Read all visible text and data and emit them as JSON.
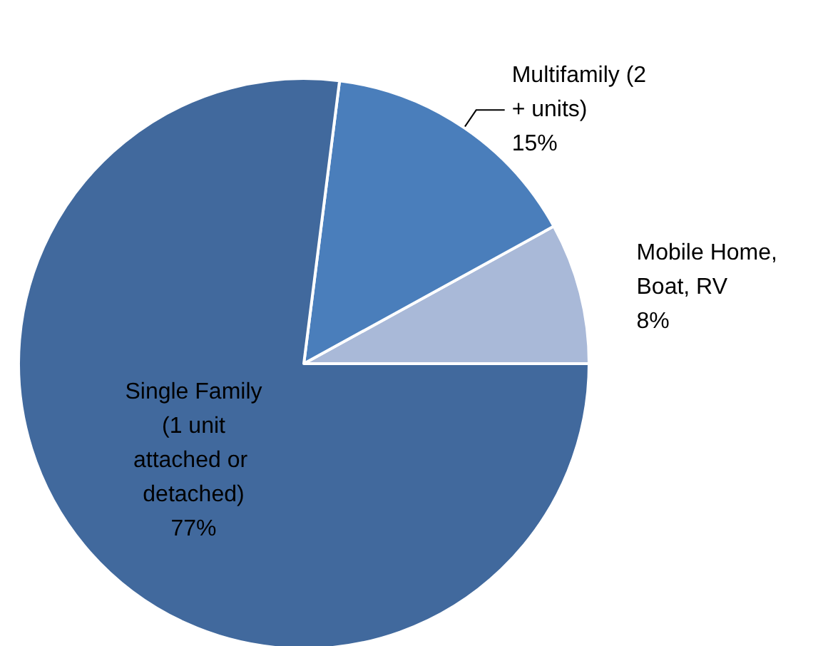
{
  "chart_data": {
    "type": "pie",
    "categories": [
      "Mobile Home, Boat, RV",
      "Multifamily (2 + units)",
      "Single Family (1 unit attached or detached)"
    ],
    "values": [
      8,
      15,
      77
    ],
    "colors": [
      "#a9b9d8",
      "#4a7ebb",
      "#41699d"
    ],
    "value_labels": [
      "8%",
      "15%",
      "77%"
    ]
  }
}
